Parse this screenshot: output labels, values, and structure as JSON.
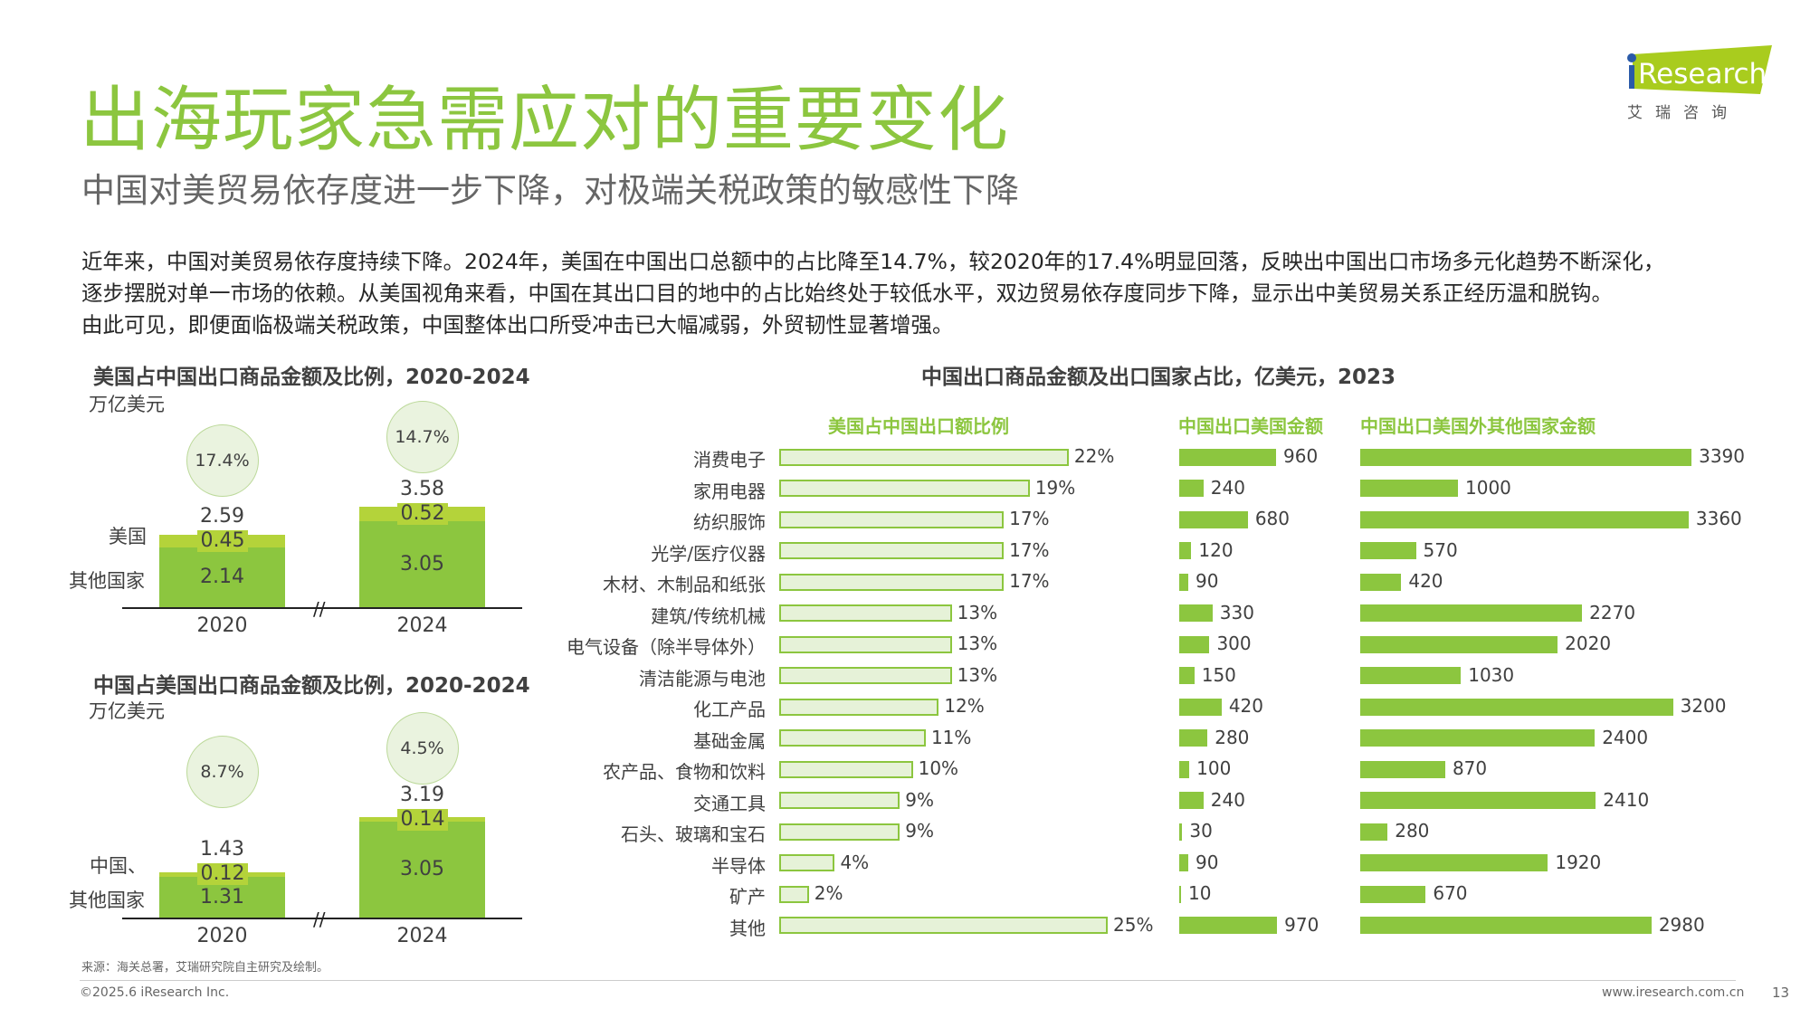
{
  "header": {
    "title": "出海玩家急需应对的重要变化",
    "subtitle": "中国对美贸易依存度进一步下降，对极端关税政策的敏感性下降",
    "logo_text": "iResearch",
    "logo_subtext": "艾 瑞 咨 询"
  },
  "paragraph": [
    "近年来，中国对美贸易依存度持续下降。2024年，美国在中国出口总额中的占比降至14.7%，较2020年的17.4%明显回落，反映出中国出口市场多元化趋势不断深化，",
    "逐步摆脱对单一市场的依赖。从美国视角来看，中国在其出口目的地中的占比始终处于较低水平，双边贸易依存度同步下降，显示出中美贸易关系正经历温和脱钩。",
    "由此可见，即便面临极端关税政策，中国整体出口所受冲击已大幅减弱，外贸韧性显著增强。"
  ],
  "colors": {
    "main_green": "#8cc63f",
    "top_green": "#b4d33a",
    "light_green": "#e6f2d8",
    "title_green": "#8cc63f"
  },
  "chart_data": [
    {
      "type": "bar",
      "stacked": true,
      "title": "美国占中国出口商品金额及比例，2020-2024",
      "unit": "万亿美元",
      "categories": [
        "2020",
        "2024"
      ],
      "series": [
        {
          "name": "其他国家",
          "values": [
            2.14,
            3.05
          ]
        },
        {
          "name": "美国",
          "values": [
            0.45,
            0.52
          ]
        }
      ],
      "totals": [
        "2.59",
        "3.58"
      ],
      "segment_labels": {
        "bottom": [
          "2.14",
          "3.05"
        ],
        "top": [
          "0.45",
          "0.52"
        ]
      },
      "share": [
        "17.4%",
        "14.7%"
      ],
      "axis_break": true
    },
    {
      "type": "bar",
      "stacked": true,
      "title": "中国占美国出口商品金额及比例，2020-2024",
      "unit": "万亿美元",
      "categories": [
        "2020",
        "2024"
      ],
      "series": [
        {
          "name": "其他国家",
          "values": [
            1.31,
            3.05
          ]
        },
        {
          "name": "中国、",
          "values": [
            0.12,
            0.14
          ]
        }
      ],
      "totals": [
        "1.43",
        "3.19"
      ],
      "segment_labels": {
        "bottom": [
          "1.31",
          "3.05"
        ],
        "top": [
          "0.12",
          "0.14"
        ]
      },
      "share": [
        "8.7%",
        "4.5%"
      ],
      "axis_break": true
    },
    {
      "type": "bar",
      "orientation": "horizontal",
      "title": "中国出口商品金额及出口国家占比，亿美元，2023",
      "categories": [
        "消费电子",
        "家用电器",
        "纺织服饰",
        "光学/医疗仪器",
        "木材、木制品和纸张",
        "建筑/传统机械",
        "电气设备（除半导体外）",
        "清洁能源与电池",
        "化工产品",
        "基础金属",
        "农产品、食物和饮料",
        "交通工具",
        "石头、玻璃和宝石",
        "半导体",
        "矿产",
        "其他"
      ],
      "series": [
        {
          "name": "美国占中国出口额比例",
          "unit": "%",
          "values": [
            22,
            19,
            17,
            17,
            17,
            13,
            13,
            13,
            12,
            11,
            10,
            9,
            9,
            4,
            2,
            25
          ]
        },
        {
          "name": "中国出口美国金额",
          "values": [
            960,
            240,
            680,
            120,
            90,
            330,
            300,
            150,
            420,
            280,
            100,
            240,
            30,
            90,
            10,
            970
          ]
        },
        {
          "name": "中国出口美国外其他国家金额",
          "values": [
            3390,
            1000,
            3360,
            570,
            420,
            2270,
            2020,
            1030,
            3200,
            2400,
            870,
            2410,
            280,
            1920,
            670,
            2980
          ]
        }
      ]
    }
  ],
  "footer": {
    "source": "来源：海关总署，艾瑞研究院自主研究及绘制。",
    "copyright": "©2025.6 iResearch Inc.",
    "url": "www.iresearch.com.cn",
    "page": "13"
  }
}
